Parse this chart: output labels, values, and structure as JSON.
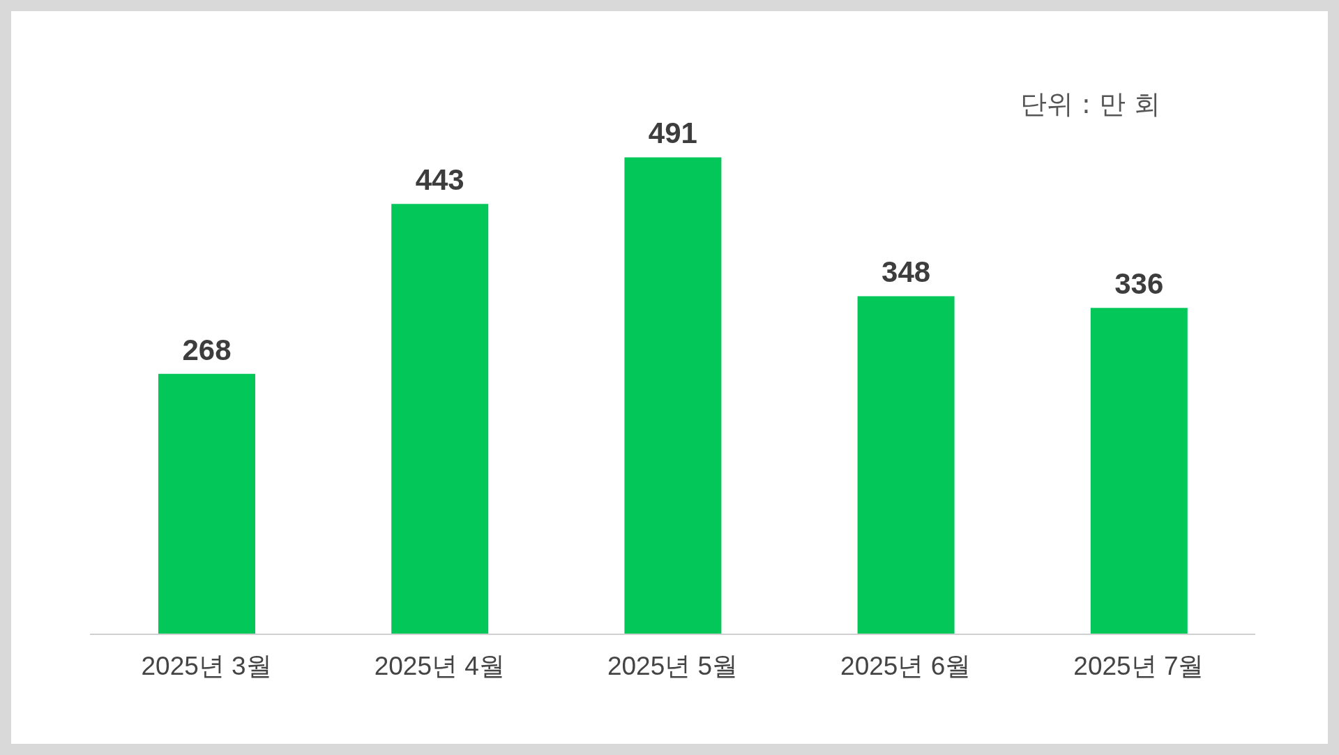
{
  "chart_data": {
    "type": "bar",
    "categories": [
      "2025년 3월",
      "2025년 4월",
      "2025년 5월",
      "2025년 6월",
      "2025년 7월"
    ],
    "values": [
      268,
      443,
      491,
      348,
      336
    ],
    "color": "#04c75a",
    "data_labels": true,
    "grid": false,
    "legend": false,
    "annotations": [
      "단위 : 만 회"
    ]
  }
}
